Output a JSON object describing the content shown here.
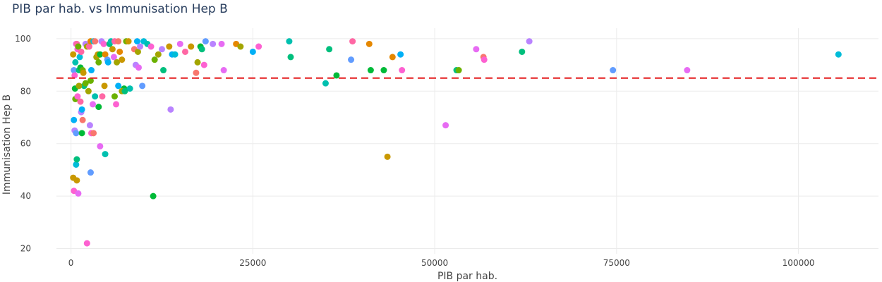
{
  "chart_data": {
    "type": "scatter",
    "title": "PIB par hab. vs Immunisation Hep B",
    "xlabel": "PIB par hab.",
    "ylabel": "Immunisation Hep B",
    "xlim": [
      -2000,
      111000
    ],
    "ylim": [
      18,
      104
    ],
    "x_ticks": [
      0,
      25000,
      50000,
      75000,
      100000
    ],
    "x_tick_labels": [
      "0",
      "25000",
      "50000",
      "75000",
      "100000"
    ],
    "y_ticks": [
      20,
      40,
      60,
      80,
      100
    ],
    "y_tick_labels": [
      "20",
      "40",
      "60",
      "80",
      "100"
    ],
    "grid": true,
    "legend": "none",
    "reference_line": {
      "y": 85,
      "color": "#e41a1c",
      "style": "dashed"
    },
    "marker_colors": [
      "#F8766D",
      "#E58700",
      "#C99800",
      "#A3A500",
      "#6BB100",
      "#00BA38",
      "#00BF7D",
      "#00C0AF",
      "#00BCD8",
      "#00B0F6",
      "#619CFF",
      "#B983FF",
      "#E76BF3",
      "#FD61D1",
      "#FF67A4"
    ],
    "points": [
      {
        "x": 300,
        "y": 94,
        "c": 2
      },
      {
        "x": 400,
        "y": 88,
        "c": 10
      },
      {
        "x": 500,
        "y": 86,
        "c": 13
      },
      {
        "x": 600,
        "y": 91,
        "c": 7
      },
      {
        "x": 700,
        "y": 98,
        "c": 12
      },
      {
        "x": 800,
        "y": 98,
        "c": 14
      },
      {
        "x": 900,
        "y": 96,
        "c": 13
      },
      {
        "x": 1000,
        "y": 97,
        "c": 4
      },
      {
        "x": 1100,
        "y": 88,
        "c": 6
      },
      {
        "x": 1200,
        "y": 93,
        "c": 8
      },
      {
        "x": 1300,
        "y": 89,
        "c": 5
      },
      {
        "x": 1400,
        "y": 95,
        "c": 14
      },
      {
        "x": 1600,
        "y": 88,
        "c": 4
      },
      {
        "x": 1800,
        "y": 82,
        "c": 6
      },
      {
        "x": 2000,
        "y": 98,
        "c": 11
      },
      {
        "x": 2200,
        "y": 97,
        "c": 3
      },
      {
        "x": 2500,
        "y": 97,
        "c": 14
      },
      {
        "x": 2700,
        "y": 99,
        "c": 1
      },
      {
        "x": 2800,
        "y": 88,
        "c": 9
      },
      {
        "x": 3100,
        "y": 99,
        "c": 8
      },
      {
        "x": 3300,
        "y": 99,
        "c": 0
      },
      {
        "x": 3500,
        "y": 93,
        "c": 3
      },
      {
        "x": 3700,
        "y": 94,
        "c": 2
      },
      {
        "x": 3800,
        "y": 91,
        "c": 4
      },
      {
        "x": 4000,
        "y": 94,
        "c": 5
      },
      {
        "x": 4200,
        "y": 99,
        "c": 11
      },
      {
        "x": 4500,
        "y": 98,
        "c": 13
      },
      {
        "x": 4700,
        "y": 94,
        "c": 1
      },
      {
        "x": 5000,
        "y": 92,
        "c": 10
      },
      {
        "x": 5100,
        "y": 91,
        "c": 9
      },
      {
        "x": 5300,
        "y": 98,
        "c": 6
      },
      {
        "x": 5500,
        "y": 99,
        "c": 7
      },
      {
        "x": 5700,
        "y": 96,
        "c": 2
      },
      {
        "x": 5900,
        "y": 93,
        "c": 12
      },
      {
        "x": 6000,
        "y": 99,
        "c": 14
      },
      {
        "x": 6300,
        "y": 91,
        "c": 3
      },
      {
        "x": 6500,
        "y": 99,
        "c": 0
      },
      {
        "x": 6700,
        "y": 95,
        "c": 1
      },
      {
        "x": 7000,
        "y": 92,
        "c": 2
      },
      {
        "x": 7300,
        "y": 81,
        "c": 5
      },
      {
        "x": 7600,
        "y": 99,
        "c": 4
      },
      {
        "x": 7900,
        "y": 99,
        "c": 2
      },
      {
        "x": 8100,
        "y": 81,
        "c": 7
      },
      {
        "x": 8700,
        "y": 96,
        "c": 0
      },
      {
        "x": 8900,
        "y": 90,
        "c": 11
      },
      {
        "x": 9100,
        "y": 99,
        "c": 9
      },
      {
        "x": 9200,
        "y": 95,
        "c": 3
      },
      {
        "x": 9300,
        "y": 89,
        "c": 12
      },
      {
        "x": 9500,
        "y": 97,
        "c": 11
      },
      {
        "x": 9800,
        "y": 82,
        "c": 10
      },
      {
        "x": 10000,
        "y": 99,
        "c": 8
      },
      {
        "x": 10500,
        "y": 98,
        "c": 7
      },
      {
        "x": 11000,
        "y": 97,
        "c": 13
      },
      {
        "x": 11500,
        "y": 92,
        "c": 4
      },
      {
        "x": 12000,
        "y": 94,
        "c": 3
      },
      {
        "x": 12500,
        "y": 96,
        "c": 11
      },
      {
        "x": 12700,
        "y": 88,
        "c": 6
      },
      {
        "x": 13500,
        "y": 97,
        "c": 2
      },
      {
        "x": 13900,
        "y": 94,
        "c": 9
      },
      {
        "x": 14300,
        "y": 94,
        "c": 8
      },
      {
        "x": 15000,
        "y": 98,
        "c": 12
      },
      {
        "x": 15700,
        "y": 95,
        "c": 14
      },
      {
        "x": 16500,
        "y": 97,
        "c": 2
      },
      {
        "x": 17200,
        "y": 87,
        "c": 0
      },
      {
        "x": 17400,
        "y": 91,
        "c": 3
      },
      {
        "x": 17800,
        "y": 97,
        "c": 5
      },
      {
        "x": 18000,
        "y": 96,
        "c": 6
      },
      {
        "x": 18500,
        "y": 99,
        "c": 10
      },
      {
        "x": 18300,
        "y": 90,
        "c": 13
      },
      {
        "x": 19500,
        "y": 98,
        "c": 11
      },
      {
        "x": 20700,
        "y": 98,
        "c": 12
      },
      {
        "x": 21000,
        "y": 88,
        "c": 12
      },
      {
        "x": 22700,
        "y": 98,
        "c": 1
      },
      {
        "x": 23300,
        "y": 97,
        "c": 3
      },
      {
        "x": 25000,
        "y": 95,
        "c": 9
      },
      {
        "x": 25800,
        "y": 97,
        "c": 13
      },
      {
        "x": 30000,
        "y": 99,
        "c": 7
      },
      {
        "x": 30200,
        "y": 93,
        "c": 6
      },
      {
        "x": 35000,
        "y": 83,
        "c": 7
      },
      {
        "x": 35500,
        "y": 96,
        "c": 6
      },
      {
        "x": 36500,
        "y": 86,
        "c": 5
      },
      {
        "x": 38500,
        "y": 92,
        "c": 10
      },
      {
        "x": 38700,
        "y": 99,
        "c": 14
      },
      {
        "x": 41000,
        "y": 98,
        "c": 1
      },
      {
        "x": 41200,
        "y": 88,
        "c": 5
      },
      {
        "x": 43000,
        "y": 88,
        "c": 5
      },
      {
        "x": 43500,
        "y": 55,
        "c": 2
      },
      {
        "x": 44200,
        "y": 93,
        "c": 1
      },
      {
        "x": 45300,
        "y": 94,
        "c": 9
      },
      {
        "x": 45500,
        "y": 88,
        "c": 13
      },
      {
        "x": 51500,
        "y": 67,
        "c": 12
      },
      {
        "x": 53000,
        "y": 88,
        "c": 6
      },
      {
        "x": 53300,
        "y": 88,
        "c": 4
      },
      {
        "x": 55700,
        "y": 96,
        "c": 12
      },
      {
        "x": 56700,
        "y": 93,
        "c": 0
      },
      {
        "x": 56800,
        "y": 92,
        "c": 13
      },
      {
        "x": 62000,
        "y": 95,
        "c": 6
      },
      {
        "x": 63000,
        "y": 99,
        "c": 11
      },
      {
        "x": 74500,
        "y": 88,
        "c": 10
      },
      {
        "x": 84700,
        "y": 88,
        "c": 12
      },
      {
        "x": 105500,
        "y": 94,
        "c": 8
      },
      {
        "x": 300,
        "y": 47,
        "c": 2
      },
      {
        "x": 400,
        "y": 42,
        "c": 13
      },
      {
        "x": 400,
        "y": 69,
        "c": 9
      },
      {
        "x": 500,
        "y": 65,
        "c": 11
      },
      {
        "x": 550,
        "y": 81,
        "c": 5
      },
      {
        "x": 600,
        "y": 77,
        "c": 4
      },
      {
        "x": 700,
        "y": 52,
        "c": 8
      },
      {
        "x": 700,
        "y": 64,
        "c": 10
      },
      {
        "x": 800,
        "y": 54,
        "c": 6
      },
      {
        "x": 800,
        "y": 46,
        "c": 2
      },
      {
        "x": 900,
        "y": 78,
        "c": 13
      },
      {
        "x": 1000,
        "y": 41,
        "c": 12
      },
      {
        "x": 1100,
        "y": 82,
        "c": 3
      },
      {
        "x": 1300,
        "y": 76,
        "c": 14
      },
      {
        "x": 1400,
        "y": 72,
        "c": 11
      },
      {
        "x": 1500,
        "y": 73,
        "c": 9
      },
      {
        "x": 1500,
        "y": 64,
        "c": 5
      },
      {
        "x": 1600,
        "y": 69,
        "c": 0
      },
      {
        "x": 1700,
        "y": 87,
        "c": 2
      },
      {
        "x": 2000,
        "y": 83,
        "c": 4
      },
      {
        "x": 2200,
        "y": 22,
        "c": 13
      },
      {
        "x": 2400,
        "y": 80,
        "c": 3
      },
      {
        "x": 2600,
        "y": 67,
        "c": 11
      },
      {
        "x": 2700,
        "y": 49,
        "c": 10
      },
      {
        "x": 2700,
        "y": 84,
        "c": 4
      },
      {
        "x": 2800,
        "y": 64,
        "c": 13
      },
      {
        "x": 3000,
        "y": 75,
        "c": 12
      },
      {
        "x": 3100,
        "y": 64,
        "c": 0
      },
      {
        "x": 3300,
        "y": 78,
        "c": 7
      },
      {
        "x": 3800,
        "y": 74,
        "c": 5
      },
      {
        "x": 4000,
        "y": 59,
        "c": 12
      },
      {
        "x": 4300,
        "y": 78,
        "c": 14
      },
      {
        "x": 4600,
        "y": 82,
        "c": 2
      },
      {
        "x": 4700,
        "y": 56,
        "c": 7
      },
      {
        "x": 6000,
        "y": 78,
        "c": 4
      },
      {
        "x": 6200,
        "y": 75,
        "c": 13
      },
      {
        "x": 6500,
        "y": 82,
        "c": 9
      },
      {
        "x": 7000,
        "y": 80,
        "c": 3
      },
      {
        "x": 7400,
        "y": 80,
        "c": 6
      },
      {
        "x": 11300,
        "y": 40,
        "c": 5
      },
      {
        "x": 13700,
        "y": 73,
        "c": 11
      }
    ]
  }
}
